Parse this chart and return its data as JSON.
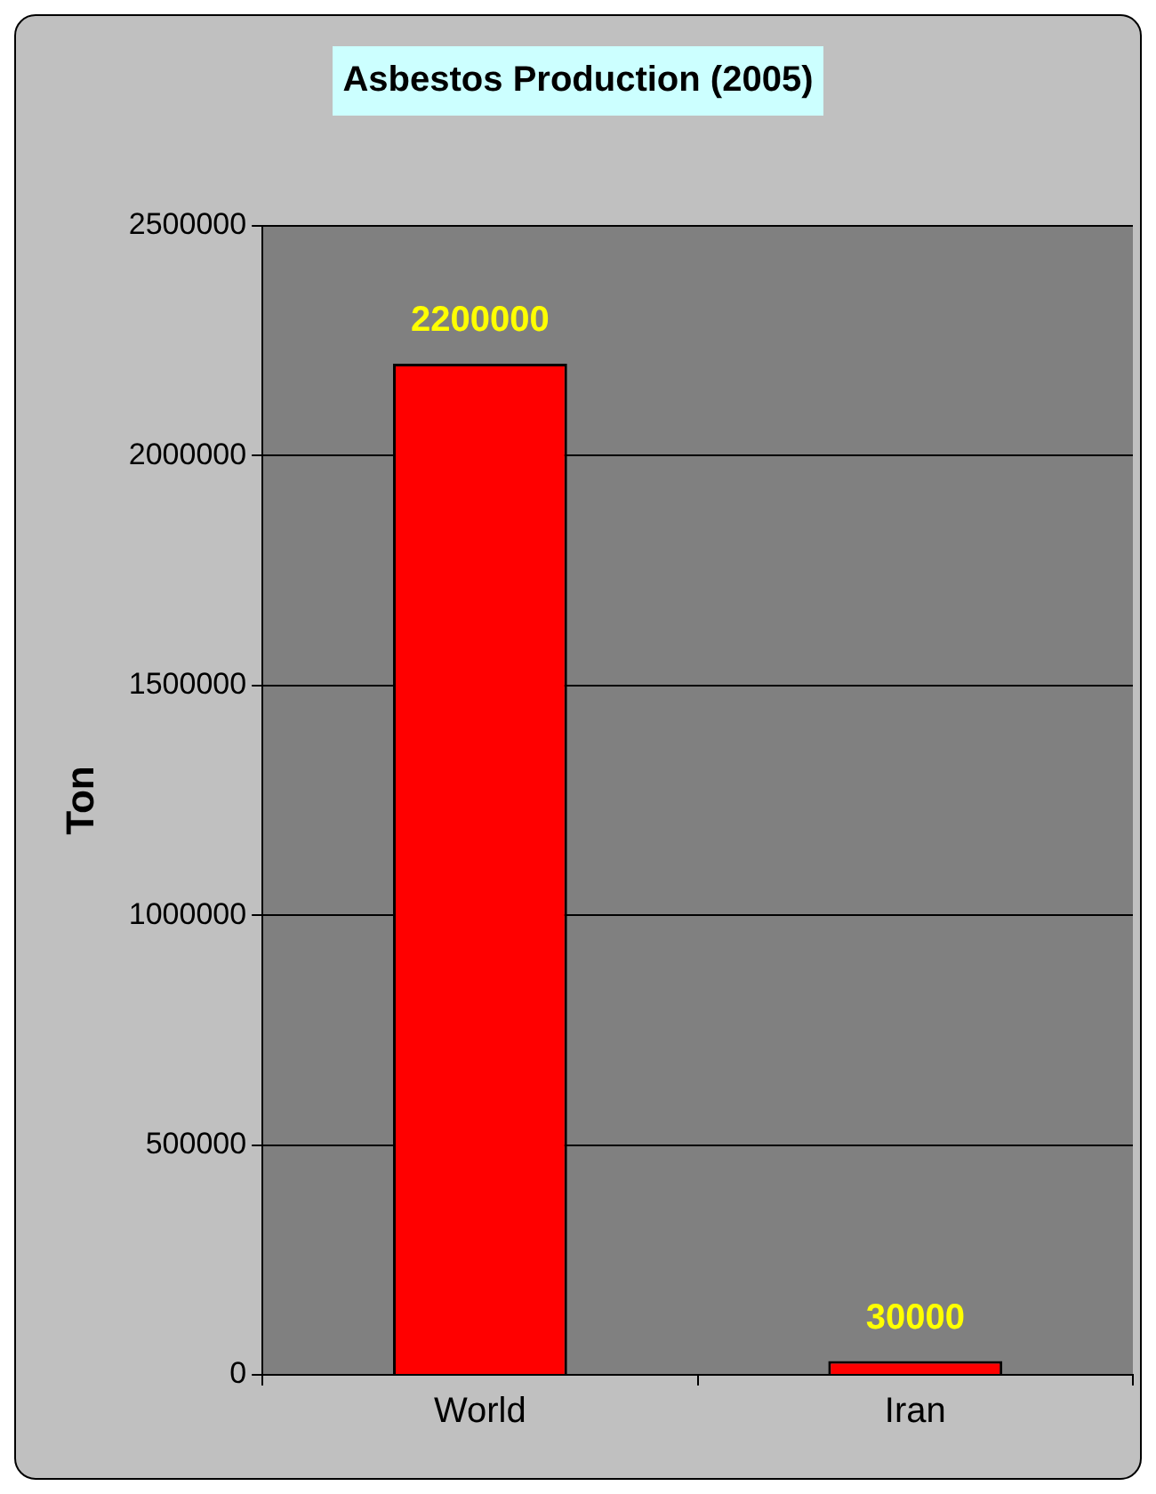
{
  "chart_data": {
    "type": "bar",
    "title": "Asbestos Production (2005)",
    "ylabel": "Ton",
    "categories": [
      "World",
      "Iran"
    ],
    "values": [
      2200000,
      30000
    ],
    "color": "#ff0000",
    "ylim": [
      0,
      2500000
    ],
    "yticks": [
      0,
      500000,
      1000000,
      1500000,
      2000000,
      2500000
    ],
    "grid": "y",
    "legend": false,
    "data_labels": true
  }
}
